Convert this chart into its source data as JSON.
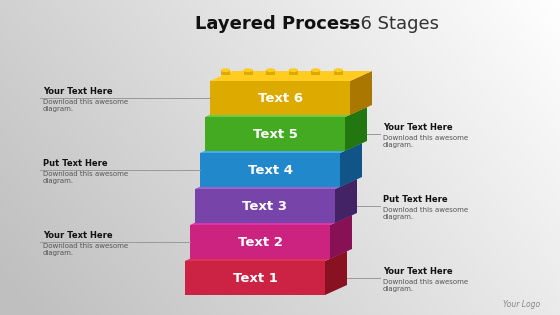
{
  "title_bold": "Layered Process",
  "title_suffix": " – 6 Stages",
  "stages": [
    {
      "label": "Text 1",
      "color": "#cc2244",
      "dark_color": "#881122",
      "top_color": "#dd3355",
      "side_color": "#aa1133"
    },
    {
      "label": "Text 2",
      "color": "#cc2280",
      "dark_color": "#881155",
      "top_color": "#dd33aa",
      "side_color": "#aa1166"
    },
    {
      "label": "Text 3",
      "color": "#7744aa",
      "dark_color": "#442266",
      "top_color": "#9966cc",
      "side_color": "#553388"
    },
    {
      "label": "Text 4",
      "color": "#2288cc",
      "dark_color": "#115588",
      "top_color": "#44aaee",
      "side_color": "#1166aa"
    },
    {
      "label": "Text 5",
      "color": "#44aa22",
      "dark_color": "#227711",
      "top_color": "#66cc44",
      "side_color": "#338811"
    },
    {
      "label": "Text 6",
      "color": "#ddaa00",
      "dark_color": "#aa7700",
      "top_color": "#ffcc22",
      "side_color": "#bb8800"
    }
  ],
  "left_annotations": [
    {
      "title": "Your Text Here",
      "body": "Download this awesome\ndiagram.",
      "stage_idx": 5
    },
    {
      "title": "Put Text Here",
      "body": "Download this awesome\ndiagram.",
      "stage_idx": 3
    },
    {
      "title": "Your Text Here",
      "body": "Download this awesome\ndiagram.",
      "stage_idx": 1
    }
  ],
  "right_annotations": [
    {
      "title": "Your Text Here",
      "body": "Download this awesome\ndiagram.",
      "stage_idx": 4
    },
    {
      "title": "Put Text Here",
      "body": "Download this awesome\ndiagram.",
      "stage_idx": 2
    },
    {
      "title": "Your Text Here",
      "body": "Download this awesome\ndiagram.",
      "stage_idx": 0
    }
  ],
  "logo_text": "Your Logo",
  "bg_left_color": "#ffffff",
  "bg_right_color": "#cccccc"
}
